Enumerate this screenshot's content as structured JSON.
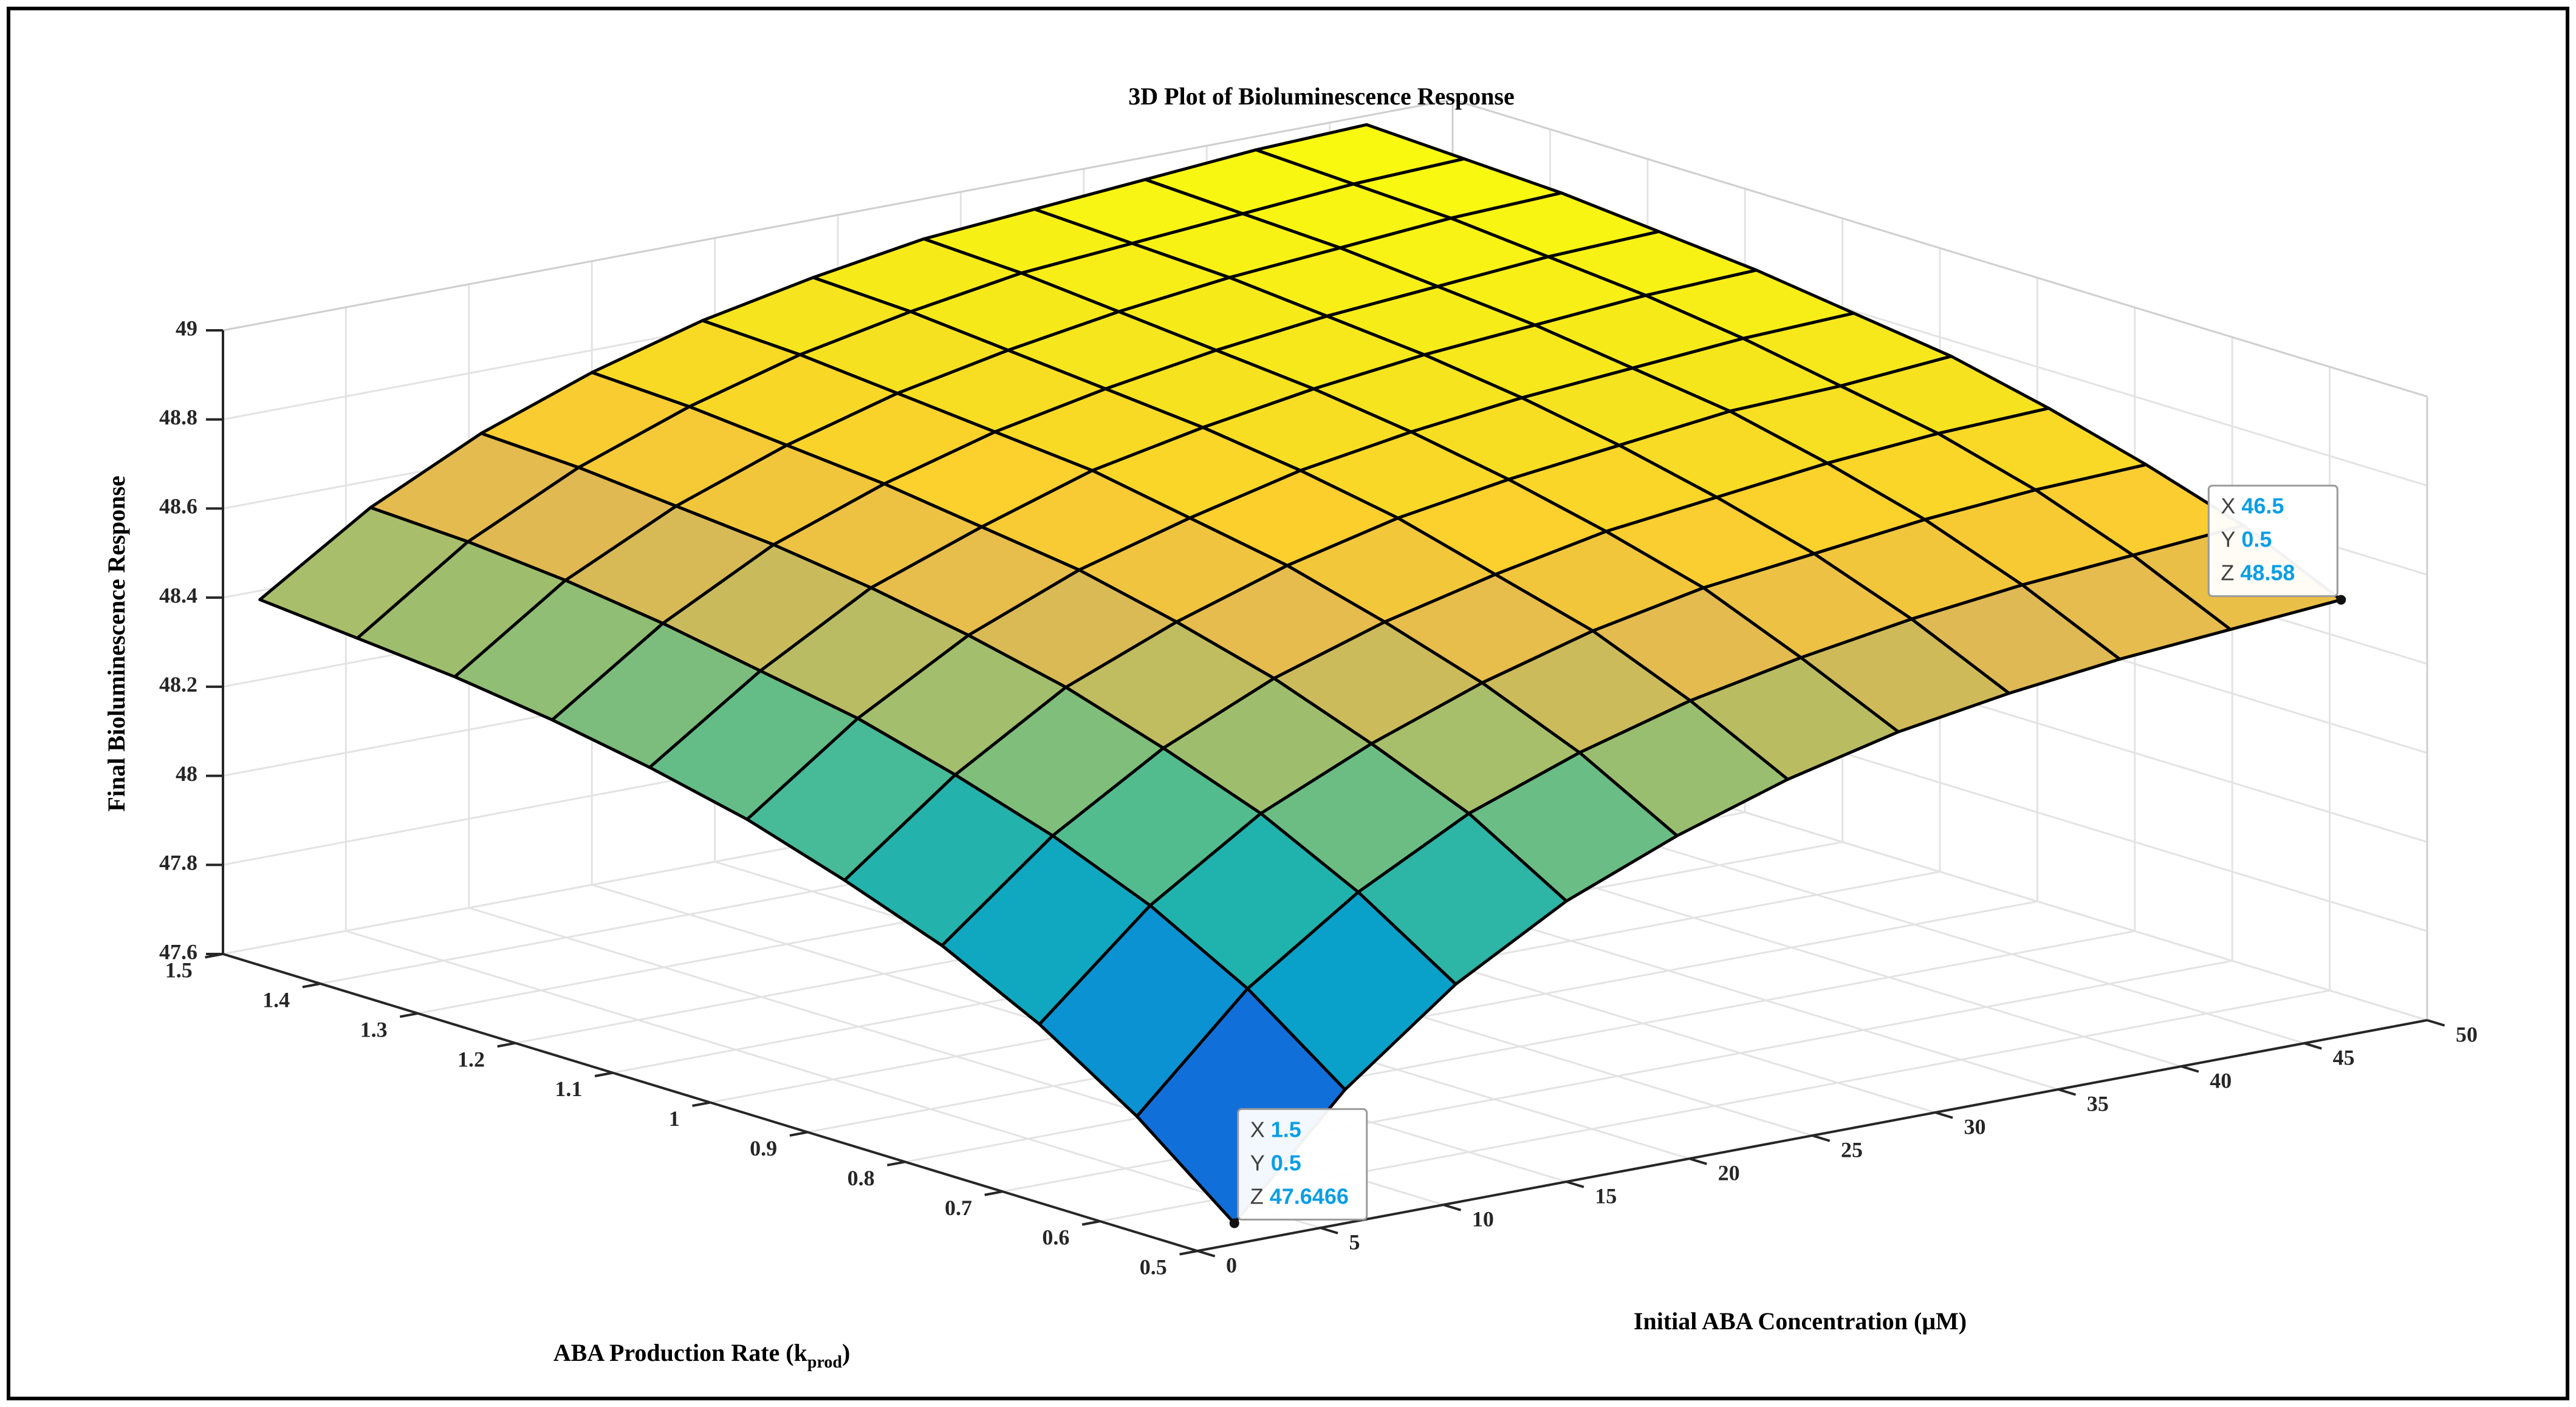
{
  "chart_data": {
    "type": "surface",
    "title": "3D Plot of Bioluminescence Response",
    "xlabel": "Initial ABA Concentration (μM)",
    "ylabel_parts": [
      "ABA Production Rate (k",
      "prod",
      ")"
    ],
    "zlabel": "Final Bioluminescence Response",
    "colormap": "parula",
    "grid": true,
    "x": [
      1.5,
      6,
      10.5,
      15,
      19.5,
      24,
      28.5,
      33,
      37.5,
      42,
      46.5
    ],
    "y": [
      0.5,
      0.6,
      0.7,
      0.8,
      0.9,
      1,
      1.1,
      1.2,
      1.3,
      1.4,
      1.5
    ],
    "z": [
      [
        47.6466,
        47.9,
        48.09,
        48.23,
        48.33,
        48.41,
        48.47,
        48.51,
        48.54,
        48.56,
        48.58
      ],
      [
        47.82,
        48.06,
        48.23,
        48.36,
        48.45,
        48.52,
        48.57,
        48.61,
        48.64,
        48.66,
        48.68
      ],
      [
        47.96,
        48.18,
        48.34,
        48.45,
        48.54,
        48.61,
        48.66,
        48.69,
        48.72,
        48.74,
        48.75
      ],
      [
        48.07,
        48.27,
        48.42,
        48.53,
        48.61,
        48.67,
        48.72,
        48.75,
        48.78,
        48.8,
        48.81
      ],
      [
        48.15,
        48.34,
        48.49,
        48.59,
        48.67,
        48.73,
        48.77,
        48.8,
        48.83,
        48.84,
        48.86
      ],
      [
        48.22,
        48.4,
        48.54,
        48.64,
        48.71,
        48.77,
        48.81,
        48.84,
        48.86,
        48.88,
        48.89
      ],
      [
        48.27,
        48.44,
        48.58,
        48.67,
        48.75,
        48.8,
        48.84,
        48.87,
        48.89,
        48.91,
        48.92
      ],
      [
        48.31,
        48.48,
        48.61,
        48.7,
        48.77,
        48.82,
        48.86,
        48.89,
        48.91,
        48.93,
        48.94
      ],
      [
        48.34,
        48.51,
        48.63,
        48.72,
        48.79,
        48.84,
        48.88,
        48.91,
        48.93,
        48.95,
        48.96
      ],
      [
        48.36,
        48.53,
        48.65,
        48.74,
        48.81,
        48.86,
        48.9,
        48.92,
        48.94,
        48.96,
        48.97
      ],
      [
        48.38,
        48.54,
        48.66,
        48.75,
        48.82,
        48.87,
        48.91,
        48.93,
        48.95,
        48.97,
        48.98
      ]
    ],
    "xlim": [
      0,
      50
    ],
    "xticks": [
      0,
      5,
      10,
      15,
      20,
      25,
      30,
      35,
      40,
      45,
      50
    ],
    "ylim": [
      0.5,
      1.5
    ],
    "yticks": [
      0.5,
      0.6,
      0.7,
      0.8,
      0.9,
      1,
      1.1,
      1.2,
      1.3,
      1.4,
      1.5
    ],
    "zlim": [
      47.6,
      49
    ],
    "zticks": [
      47.6,
      47.8,
      48,
      48.2,
      48.4,
      48.6,
      48.8,
      49
    ],
    "datatip_labels": [
      "X",
      "Y",
      "Z"
    ],
    "datatips": [
      {
        "x": 1.5,
        "y": 0.5,
        "z": 47.6466
      },
      {
        "x": 46.5,
        "y": 0.5,
        "z": 48.58
      }
    ]
  }
}
